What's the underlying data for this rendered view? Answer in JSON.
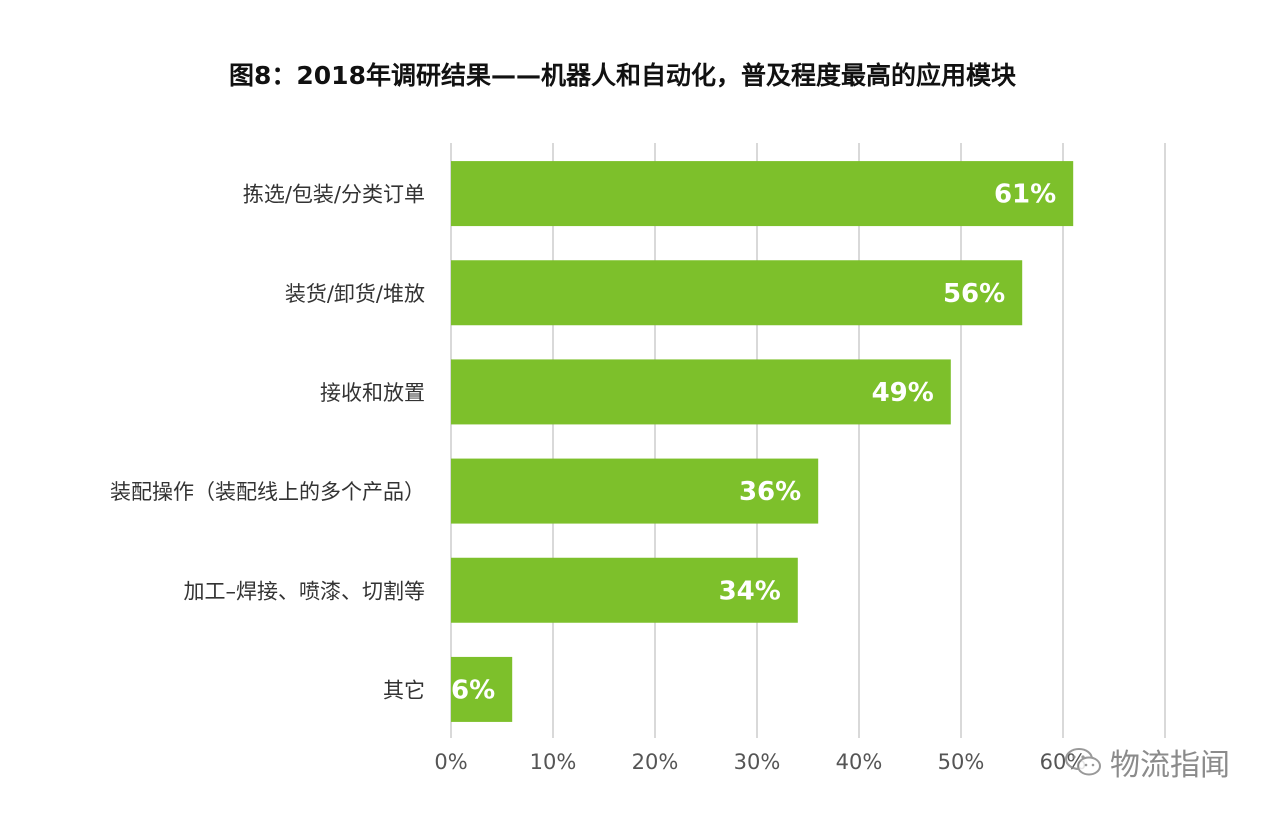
{
  "chart_data": {
    "type": "bar",
    "orientation": "horizontal",
    "title": "图8：2018年调研结果——机器人和自动化，普及程度最高的应用模块",
    "categories": [
      "拣选/包装/分类订单",
      "装货/卸货/堆放",
      "接收和放置",
      "装配操作（装配线上的多个产品）",
      "加工–焊接、喷漆、切割等",
      "其它"
    ],
    "values": [
      61,
      56,
      49,
      36,
      34,
      6
    ],
    "data_labels": [
      "61%",
      "56%",
      "49%",
      "36%",
      "34%",
      "6%"
    ],
    "x_ticks": [
      "0%",
      "10%",
      "20%",
      "30%",
      "40%",
      "50%",
      "60%"
    ],
    "xlim": [
      0,
      70
    ],
    "grid": true,
    "bar_color": "#7dc02b",
    "grid_color": "#d9d9d9"
  },
  "watermark": {
    "text": "物流指闻"
  }
}
